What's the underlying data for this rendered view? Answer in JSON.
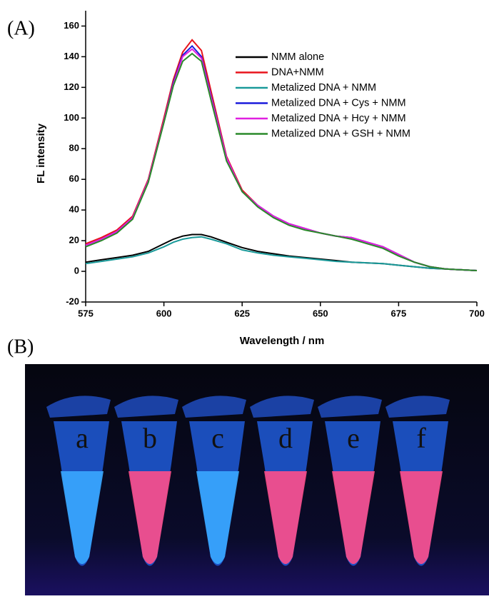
{
  "panel_labels": [
    "(A)",
    "(B)"
  ],
  "chart_data": {
    "type": "line",
    "xlabel": "Wavelength / nm",
    "ylabel": "FL intensity",
    "x": [
      575,
      580,
      585,
      590,
      595,
      600,
      603,
      606,
      609,
      612,
      615,
      620,
      625,
      630,
      635,
      640,
      645,
      650,
      655,
      660,
      665,
      670,
      675,
      680,
      685,
      690,
      695,
      700
    ],
    "xlim": [
      575,
      700
    ],
    "xticks": [
      575,
      600,
      625,
      650,
      675,
      700
    ],
    "ylim": [
      -20,
      170
    ],
    "yticks": [
      -20,
      0,
      20,
      40,
      60,
      80,
      100,
      120,
      140,
      160
    ],
    "legend": "upper right",
    "series": [
      {
        "name": "NMM alone",
        "color": "#000000",
        "values": [
          6,
          7.5,
          9,
          10.5,
          13,
          18,
          21,
          23,
          24,
          24,
          22.5,
          19,
          15.5,
          13,
          11.5,
          10,
          9,
          8,
          7,
          6,
          5.5,
          5,
          4,
          3,
          2,
          1.5,
          1,
          0.5
        ]
      },
      {
        "name": "DNA+NMM",
        "color": "#e8131b",
        "values": [
          18,
          22,
          27,
          36,
          60,
          100,
          125,
          143,
          151,
          144,
          118,
          75,
          53,
          43,
          36,
          31,
          28,
          25,
          23,
          22,
          19,
          16,
          11,
          6,
          3,
          1.5,
          1,
          0.5
        ]
      },
      {
        "name": "Metalized DNA + NMM",
        "color": "#1a9a9a",
        "values": [
          5,
          6.5,
          8,
          9.5,
          12,
          16,
          19,
          21,
          22,
          22.5,
          21,
          18,
          14,
          12,
          10.5,
          9.5,
          8.5,
          7.5,
          6.5,
          6,
          5.5,
          5,
          4,
          3,
          2,
          1.5,
          1,
          0.5
        ]
      },
      {
        "name": "Metalized DNA  + Cys + NMM",
        "color": "#1c1cdc",
        "values": [
          17,
          21,
          26,
          35,
          59,
          98,
          123,
          141,
          147,
          140,
          115,
          74,
          52,
          43,
          36,
          31,
          28,
          25,
          23,
          22,
          19,
          16,
          11,
          6,
          3,
          1.5,
          1,
          0.5
        ]
      },
      {
        "name": "Metalized DNA + Hcy + NMM",
        "color": "#e020e0",
        "values": [
          17,
          21,
          26,
          35,
          59,
          98,
          122,
          140,
          145,
          139,
          114,
          74,
          52,
          43,
          36,
          31,
          28,
          25,
          23,
          22,
          19,
          16,
          11,
          6,
          3,
          1.5,
          1,
          0.5
        ]
      },
      {
        "name": "Metalized DNA + GSH + NMM",
        "color": "#2a8a2a",
        "values": [
          16,
          20,
          25,
          34,
          58,
          97,
          121,
          137,
          142,
          137,
          112,
          72,
          52,
          42,
          35,
          30,
          27,
          25,
          23,
          21,
          18,
          15,
          10,
          6,
          3,
          1.5,
          1,
          0.5
        ]
      }
    ]
  },
  "photo": {
    "tube_labels": [
      "a",
      "b",
      "c",
      "d",
      "e",
      "f"
    ],
    "liquid_colors": [
      "#3aa8ff",
      "#ff4f8a",
      "#3aa8ff",
      "#ff4f8a",
      "#ff4f8a",
      "#ff4f8a"
    ]
  }
}
